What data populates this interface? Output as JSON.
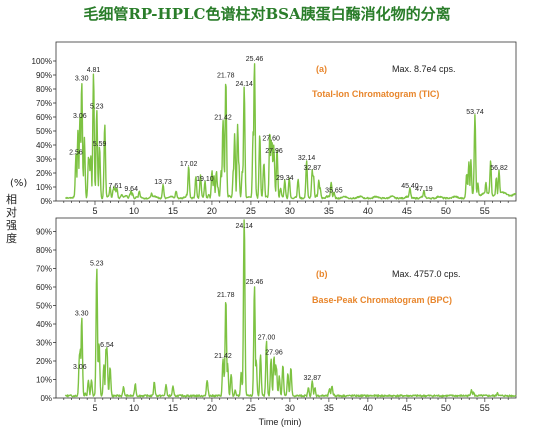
{
  "figure_title": "毛细管RP-HPLC色谱柱对BSA胰蛋白酶消化物的分离",
  "y_axis_label": "相对强度",
  "y_axis_unit": "(%)",
  "x_axis_label": "Time (min)",
  "colors": {
    "trace": "#7dc242",
    "title": "#2a7d2a",
    "annotation": "#e8862c"
  },
  "chart_data": [
    {
      "type": "line",
      "panel_label": "(a)",
      "name": "Total-Ion Chromatogram (TIC)",
      "max_text": "Max. 8.7e4 cps.",
      "xlim": [
        0,
        59
      ],
      "ylim": [
        0,
        100
      ],
      "ytick_labels": [
        "0%",
        "10%",
        "20%",
        "30%",
        "40%",
        "50%",
        "60%",
        "70%",
        "80%",
        "90%",
        "100%"
      ],
      "xtick_labels": [
        "5",
        "10",
        "15",
        "20",
        "25",
        "30",
        "35",
        "40",
        "45",
        "50",
        "55"
      ],
      "xticks": [
        5,
        10,
        15,
        20,
        25,
        30,
        35,
        40,
        45,
        50,
        55
      ],
      "peaks": [
        {
          "label": "2.56",
          "x": 2.56,
          "y": 31
        },
        {
          "label": "3.06",
          "x": 3.06,
          "y": 57
        },
        {
          "label": "3.30",
          "x": 3.3,
          "y": 84
        },
        {
          "label": "4.81",
          "x": 4.81,
          "y": 90
        },
        {
          "label": "5.23",
          "x": 5.23,
          "y": 64
        },
        {
          "label": "5.59",
          "x": 5.59,
          "y": 37
        },
        {
          "label": "7.61",
          "x": 7.61,
          "y": 7
        },
        {
          "label": "9.64",
          "x": 9.64,
          "y": 5
        },
        {
          "label": "13.73",
          "x": 13.73,
          "y": 10
        },
        {
          "label": "17.02",
          "x": 17.02,
          "y": 23
        },
        {
          "label": "19.10",
          "x": 19.1,
          "y": 12
        },
        {
          "label": "21.42",
          "x": 21.42,
          "y": 56
        },
        {
          "label": "21.78",
          "x": 21.78,
          "y": 86
        },
        {
          "label": "24.14",
          "x": 24.14,
          "y": 80
        },
        {
          "label": "25.46",
          "x": 25.46,
          "y": 98
        },
        {
          "label": "27.60",
          "x": 27.6,
          "y": 41
        },
        {
          "label": "27.96",
          "x": 27.96,
          "y": 32
        },
        {
          "label": "29.34",
          "x": 29.34,
          "y": 13
        },
        {
          "label": "32.14",
          "x": 32.14,
          "y": 27
        },
        {
          "label": "32.87",
          "x": 32.87,
          "y": 20
        },
        {
          "label": "35.65",
          "x": 35.65,
          "y": 4
        },
        {
          "label": "45.40",
          "x": 45.4,
          "y": 7
        },
        {
          "label": "47.19",
          "x": 47.19,
          "y": 5
        },
        {
          "label": "53.74",
          "x": 53.74,
          "y": 60
        },
        {
          "label": "56.82",
          "x": 56.82,
          "y": 20
        }
      ]
    },
    {
      "type": "line",
      "panel_label": "(b)",
      "name": "Base-Peak Chromatogram (BPC)",
      "max_text": "Max. 4757.0 cps.",
      "xlim": [
        0,
        59
      ],
      "ylim": [
        0,
        100
      ],
      "ytick_labels": [
        "0%",
        "10%",
        "20%",
        "30%",
        "40%",
        "50%",
        "60%",
        "70%",
        "80%",
        "90%"
      ],
      "xtick_labels": [
        "5",
        "10",
        "15",
        "20",
        "25",
        "30",
        "35",
        "40",
        "45",
        "50",
        "55"
      ],
      "xticks": [
        5,
        10,
        15,
        20,
        25,
        30,
        35,
        40,
        45,
        50,
        55
      ],
      "peaks": [
        {
          "label": "3.06",
          "x": 3.06,
          "y": 14
        },
        {
          "label": "3.30",
          "x": 3.3,
          "y": 43
        },
        {
          "label": "5.23",
          "x": 5.23,
          "y": 70
        },
        {
          "label": "6.54",
          "x": 6.54,
          "y": 26
        },
        {
          "label": "21.42",
          "x": 21.42,
          "y": 20
        },
        {
          "label": "21.78",
          "x": 21.78,
          "y": 53
        },
        {
          "label": "24.14",
          "x": 24.14,
          "y": 100
        },
        {
          "label": "25.46",
          "x": 25.46,
          "y": 60
        },
        {
          "label": "27.00",
          "x": 27.0,
          "y": 30
        },
        {
          "label": "27.96",
          "x": 27.96,
          "y": 22
        },
        {
          "label": "32.87",
          "x": 32.87,
          "y": 8
        }
      ]
    }
  ]
}
